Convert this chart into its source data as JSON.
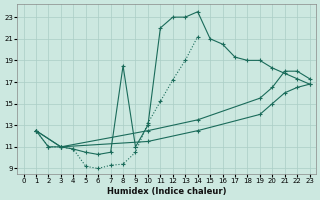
{
  "xlabel": "Humidex (Indice chaleur)",
  "bg_color": "#cce8e0",
  "grid_color": "#aacec6",
  "line_color": "#1a6b5a",
  "xlim": [
    -0.5,
    23.5
  ],
  "ylim": [
    8.5,
    24.2
  ],
  "xticks": [
    0,
    1,
    2,
    3,
    4,
    5,
    6,
    7,
    8,
    9,
    10,
    11,
    12,
    13,
    14,
    15,
    16,
    17,
    18,
    19,
    20,
    21,
    22,
    23
  ],
  "yticks": [
    9,
    11,
    13,
    15,
    17,
    19,
    21,
    23
  ],
  "curve1_x": [
    1,
    2,
    3,
    4,
    5,
    6,
    7,
    8,
    9,
    10,
    11,
    12,
    13,
    14
  ],
  "curve1_y": [
    12.5,
    11,
    11,
    10.8,
    9.2,
    9.0,
    9.3,
    9.4,
    10.5,
    13.2,
    15.2,
    17.2,
    19.0,
    21.2
  ],
  "curve2_x": [
    1,
    2,
    3,
    4,
    5,
    6,
    7,
    8,
    9,
    10,
    11,
    12,
    13,
    14,
    15,
    16,
    17,
    18,
    19,
    20,
    21,
    22,
    23
  ],
  "curve2_y": [
    12.5,
    11.0,
    11.0,
    10.8,
    10.5,
    10.3,
    10.5,
    18.5,
    11.0,
    13.0,
    22.0,
    23.0,
    23.0,
    23.5,
    21.0,
    20.5,
    19.3,
    19.0,
    19.0,
    18.3,
    17.8,
    17.3,
    16.8
  ],
  "curve3_x": [
    1,
    3,
    10,
    14,
    19,
    20,
    21,
    22,
    23
  ],
  "curve3_y": [
    12.5,
    11.0,
    12.5,
    13.5,
    15.5,
    16.5,
    18.0,
    18.0,
    17.3
  ],
  "curve4_x": [
    1,
    3,
    10,
    14,
    19,
    20,
    21,
    22,
    23
  ],
  "curve4_y": [
    12.5,
    11.0,
    11.5,
    12.5,
    14.0,
    15.0,
    16.0,
    16.5,
    16.8
  ]
}
